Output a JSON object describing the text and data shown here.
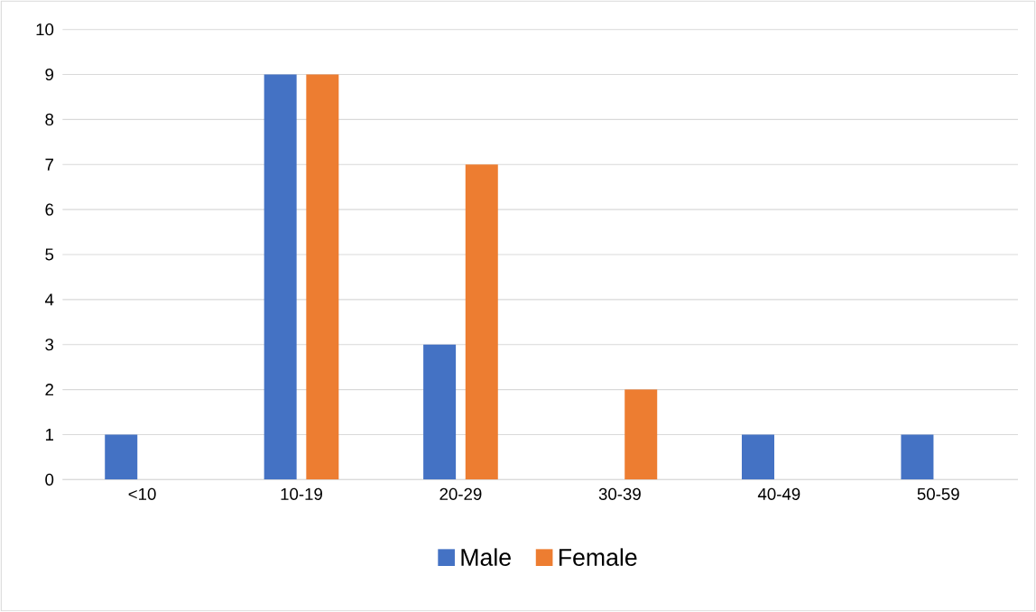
{
  "chart_data": {
    "type": "bar",
    "categories": [
      "<10",
      "10-19",
      "20-29",
      "30-39",
      "40-49",
      "50-59"
    ],
    "series": [
      {
        "name": "Male",
        "color": "#4472c4",
        "values": [
          1,
          9,
          3,
          0,
          1,
          1
        ]
      },
      {
        "name": "Female",
        "color": "#ed7d31",
        "values": [
          0,
          9,
          7,
          2,
          0,
          0
        ]
      }
    ],
    "ylim": [
      0,
      10
    ],
    "yticks": [
      0,
      1,
      2,
      3,
      4,
      5,
      6,
      7,
      8,
      9,
      10
    ],
    "grid": "y",
    "legend": "bottom"
  }
}
